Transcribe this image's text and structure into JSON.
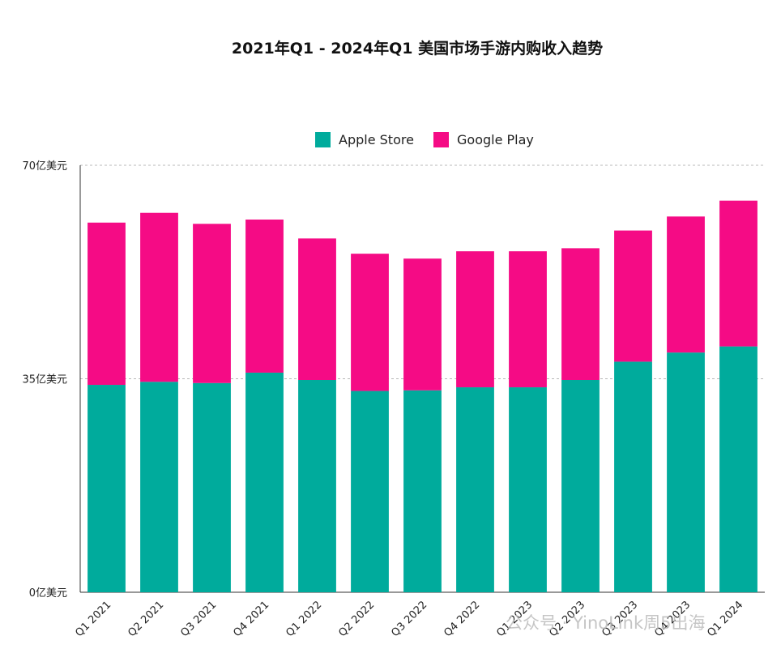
{
  "chart_data": {
    "type": "bar",
    "stacked": true,
    "title": "2021年Q1 - 2024年Q1 美国市场手游内购收入趋势",
    "xlabel": "",
    "ylabel": "",
    "unit": "亿美元",
    "ylim": [
      0,
      70
    ],
    "yticks": [
      {
        "value": 0,
        "label": "0亿美元"
      },
      {
        "value": 35,
        "label": "35亿美元"
      },
      {
        "value": 70,
        "label": "70亿美元"
      }
    ],
    "grid": true,
    "legend_position": "top-center",
    "categories": [
      "Q1 2021",
      "Q2 2021",
      "Q3 2021",
      "Q4 2021",
      "Q1 2022",
      "Q2 2022",
      "Q3 2022",
      "Q4 2022",
      "Q1 2023",
      "Q2 2023",
      "Q3 2023",
      "Q4 2023",
      "Q1 2024"
    ],
    "series": [
      {
        "name": "Apple Store",
        "color": "#00ab9c",
        "values": [
          34.0,
          34.5,
          34.3,
          36.0,
          34.8,
          33.0,
          33.1,
          33.6,
          33.6,
          34.8,
          37.8,
          39.3,
          40.3
        ]
      },
      {
        "name": "Google Play",
        "color": "#f50b85",
        "values": [
          26.6,
          27.7,
          26.1,
          25.1,
          23.2,
          22.5,
          21.6,
          22.3,
          22.3,
          21.6,
          21.5,
          22.3,
          23.9
        ]
      }
    ],
    "watermark": "公众号 · YinoLink周5出海"
  }
}
